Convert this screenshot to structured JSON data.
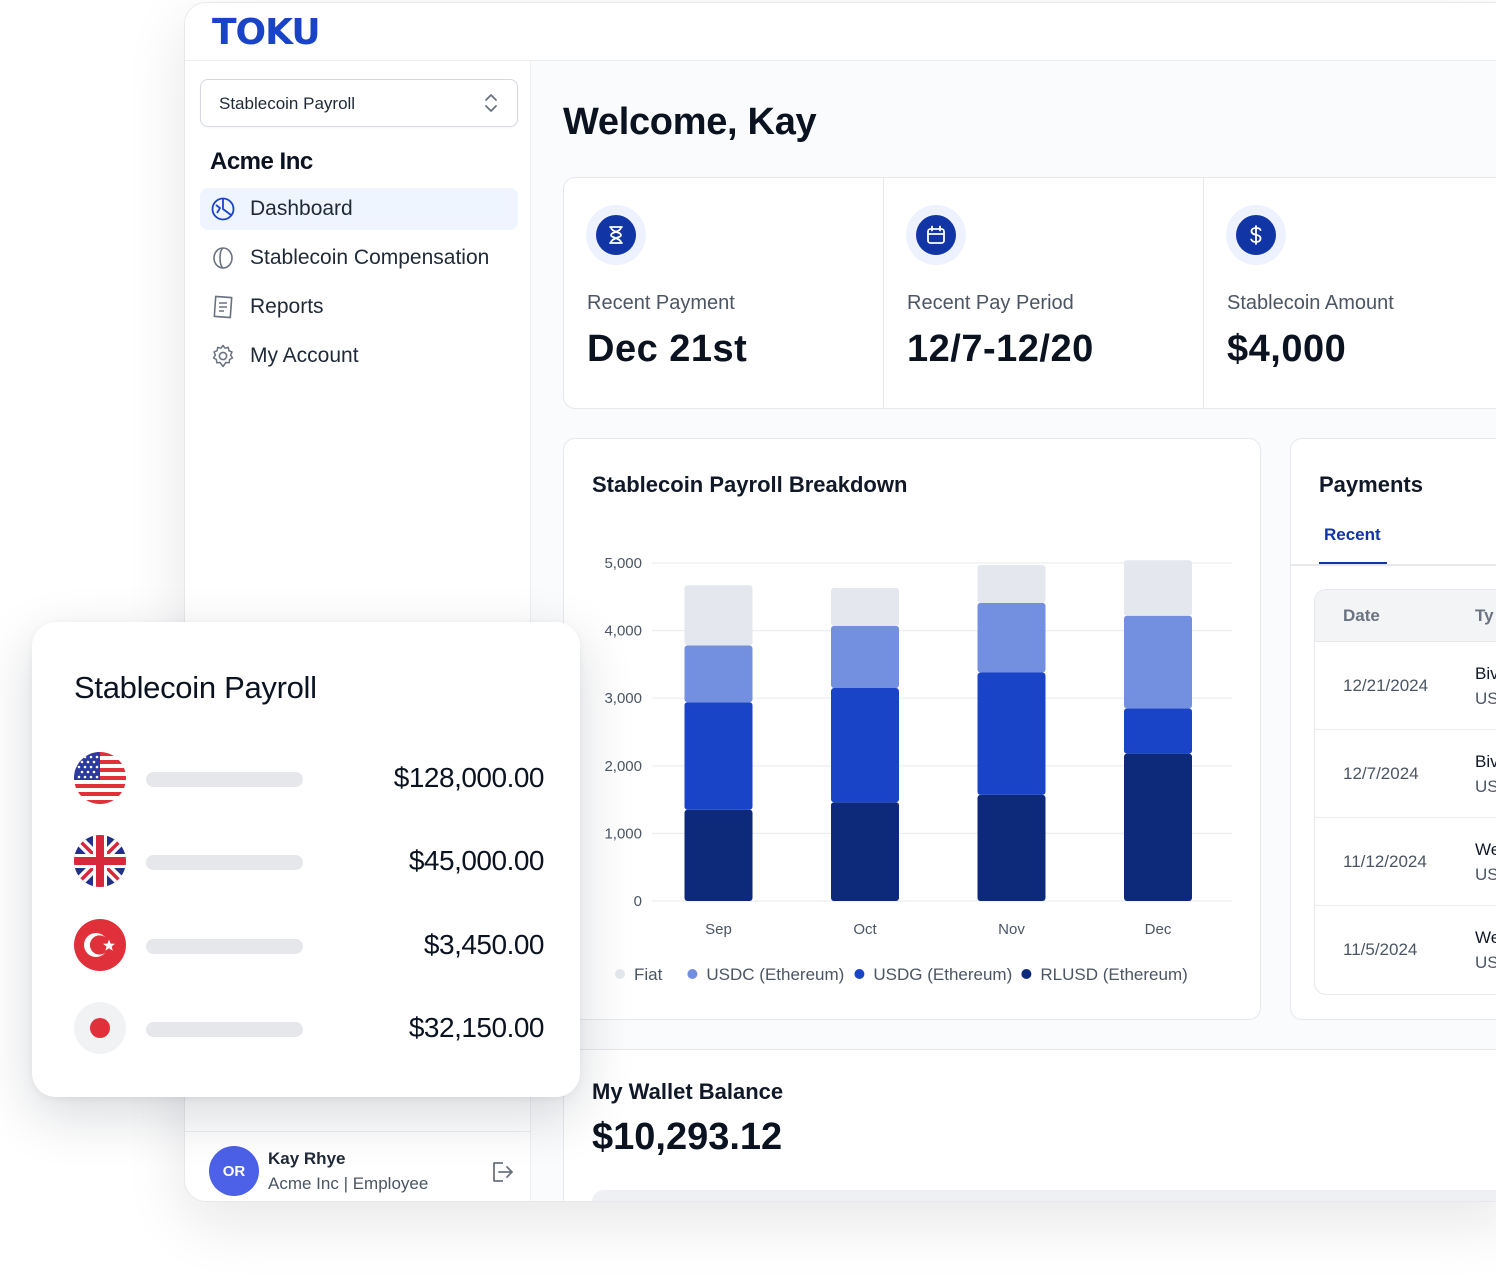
{
  "app": {
    "logo": "TOKU"
  },
  "sidebar": {
    "selector_label": "Stablecoin Payroll",
    "org_name": "Acme Inc",
    "items": [
      {
        "label": "Dashboard",
        "icon": "dashboard-icon",
        "active": true
      },
      {
        "label": "Stablecoin Compensation",
        "icon": "coin-icon",
        "active": false
      },
      {
        "label": "Reports",
        "icon": "report-icon",
        "active": false
      },
      {
        "label": "My Account",
        "icon": "gear-icon",
        "active": false
      }
    ],
    "user": {
      "initials": "OR",
      "name": "Kay Rhye",
      "role": "Acme Inc | Employee"
    }
  },
  "main": {
    "welcome": "Welcome, Kay",
    "stats": [
      {
        "label": "Recent Payment",
        "value": "Dec 21st",
        "icon": "hourglass-icon"
      },
      {
        "label": "Recent Pay Period",
        "value": "12/7-12/20",
        "icon": "calendar-icon"
      },
      {
        "label": "Stablecoin Amount",
        "value": "$4,000",
        "icon": "dollar-icon"
      }
    ]
  },
  "chart_data": {
    "type": "bar",
    "stacked": true,
    "title": "Stablecoin Payroll Breakdown",
    "categories": [
      "Sep",
      "Oct",
      "Nov",
      "Dec"
    ],
    "ylim": [
      0,
      5000
    ],
    "yticks": [
      0,
      1000,
      2000,
      3000,
      4000,
      5000
    ],
    "ytick_labels": [
      "0",
      "1,000",
      "2,000",
      "3,000",
      "4,000",
      "5,000"
    ],
    "grid": true,
    "legend": "bottom",
    "series": [
      {
        "name": "RLUSD (Ethereum)",
        "color": "#0d2a7a",
        "values": [
          1350,
          1460,
          1570,
          2180
        ]
      },
      {
        "name": "USDG (Ethereum)",
        "color": "#1a44c8",
        "values": [
          1590,
          1690,
          1810,
          670
        ]
      },
      {
        "name": "USDC (Ethereum)",
        "color": "#7390e0",
        "values": [
          840,
          920,
          1030,
          1370
        ]
      },
      {
        "name": "Fiat",
        "color": "#e4e7ee",
        "values": [
          890,
          560,
          560,
          820
        ]
      }
    ],
    "legend_order": [
      "Fiat",
      "USDC (Ethereum)",
      "USDG (Ethereum)",
      "RLUSD (Ethereum)"
    ]
  },
  "payments": {
    "title": "Payments",
    "tab": "Recent",
    "columns": [
      "Date",
      "Ty"
    ],
    "rows": [
      {
        "date": "12/21/2024",
        "type_line1": "Biv",
        "type_line2": "US"
      },
      {
        "date": "12/7/2024",
        "type_line1": "Biv",
        "type_line2": "US"
      },
      {
        "date": "11/12/2024",
        "type_line1": "We",
        "type_line2": "US"
      },
      {
        "date": "11/5/2024",
        "type_line1": "We",
        "type_line2": "US"
      }
    ]
  },
  "wallet": {
    "title": "My Wallet Balance",
    "value": "$10,293.12"
  },
  "float_card": {
    "title": "Stablecoin Payroll",
    "rows": [
      {
        "flag": "us-flag-icon",
        "amount": "$128,000.00"
      },
      {
        "flag": "uk-flag-icon",
        "amount": "$45,000.00"
      },
      {
        "flag": "turkey-flag-icon",
        "amount": "$3,450.00"
      },
      {
        "flag": "japan-flag-icon",
        "amount": "$32,150.00"
      }
    ]
  }
}
